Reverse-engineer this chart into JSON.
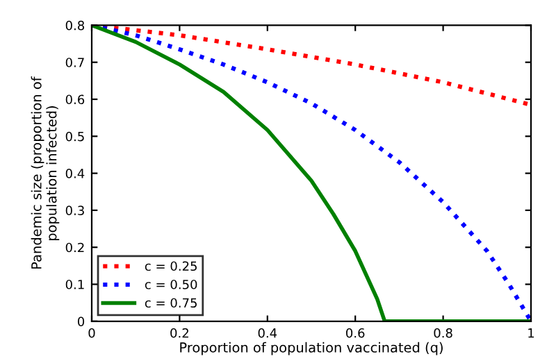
{
  "chart_data": {
    "type": "line",
    "xlabel": "Proportion of population vaccinated (q)",
    "ylabel": "Pandemic size (proportion of\npopulation infected)",
    "xlim": [
      0,
      1
    ],
    "xticks": [
      0,
      0.2,
      0.4,
      0.6,
      0.8,
      1
    ],
    "ylim": [
      0,
      0.8
    ],
    "yticks": [
      0,
      0.1,
      0.2,
      0.3,
      0.4,
      0.5,
      0.6,
      0.7,
      0.8
    ],
    "grid": false,
    "legend": "bottom left",
    "series": [
      {
        "name": "c = 0.25",
        "color": "#ff0000",
        "line_style": "dotted",
        "x": [
          0,
          0.2,
          0.4,
          0.6,
          0.8,
          1
        ],
        "values": [
          0.8,
          0.773,
          0.735,
          0.694,
          0.646,
          0.585
        ]
      },
      {
        "name": "c = 0.50",
        "color": "#0000ff",
        "line_style": "dotted",
        "x": [
          0,
          0.1,
          0.2,
          0.3,
          0.4,
          0.5,
          0.6,
          0.7,
          0.8,
          0.9,
          0.95,
          1
        ],
        "values": [
          0.8,
          0.773,
          0.735,
          0.694,
          0.646,
          0.589,
          0.517,
          0.43,
          0.322,
          0.19,
          0.1,
          0
        ]
      },
      {
        "name": "c = 0.75",
        "color": "#008000",
        "line_style": "solid",
        "x": [
          0,
          0.1,
          0.2,
          0.3,
          0.4,
          0.5,
          0.55,
          0.6,
          0.65,
          0.667,
          1
        ],
        "values": [
          0.8,
          0.755,
          0.694,
          0.62,
          0.517,
          0.38,
          0.29,
          0.19,
          0.06,
          0,
          0
        ]
      }
    ]
  }
}
